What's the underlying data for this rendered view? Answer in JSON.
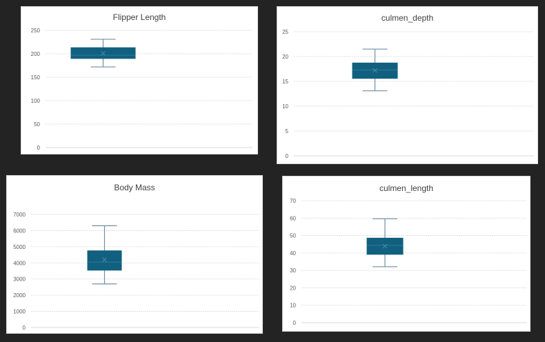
{
  "chart_data": [
    {
      "type": "box",
      "title": "Flipper Length",
      "ylim": [
        0,
        250
      ],
      "yticks": [
        0,
        50,
        100,
        150,
        200,
        250
      ],
      "min": 172,
      "q1": 190,
      "median": 197,
      "q3": 213,
      "max": 231,
      "mean": 201,
      "color": "#11607f"
    },
    {
      "type": "box",
      "title": "culmen_depth",
      "ylim": [
        0,
        25
      ],
      "yticks": [
        0,
        5,
        10,
        15,
        20,
        25
      ],
      "min": 13.1,
      "q1": 15.6,
      "median": 17.3,
      "q3": 18.7,
      "max": 21.5,
      "mean": 17.2,
      "color": "#11607f"
    },
    {
      "type": "box",
      "title": "Body Mass",
      "ylim": [
        0,
        7000
      ],
      "yticks": [
        0,
        1000,
        2000,
        3000,
        4000,
        5000,
        6000,
        7000
      ],
      "min": 2700,
      "q1": 3550,
      "median": 4050,
      "q3": 4750,
      "max": 6300,
      "mean": 4200,
      "color": "#11607f"
    },
    {
      "type": "box",
      "title": "culmen_length",
      "ylim": [
        0,
        70
      ],
      "yticks": [
        0,
        10,
        20,
        30,
        40,
        50,
        60,
        70
      ],
      "min": 32.1,
      "q1": 39.2,
      "median": 44.4,
      "q3": 48.5,
      "max": 59.6,
      "mean": 43.9,
      "color": "#11607f"
    }
  ]
}
